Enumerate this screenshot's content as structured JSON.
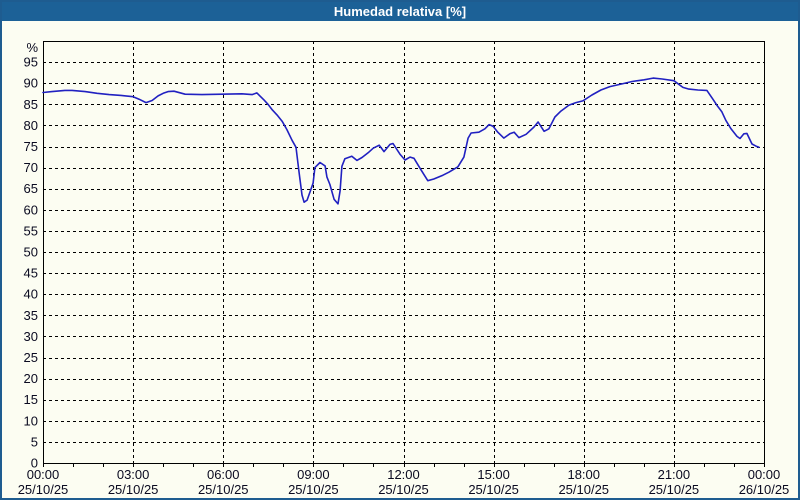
{
  "window": {
    "title": "Humedad relativa [%]"
  },
  "colors": {
    "titlebar_bg": "#1c6197",
    "titlebar_text": "#ffffff",
    "window_bg": "#fcfdf2",
    "window_border": "#1e5c90",
    "plot_border": "#000000",
    "grid": "#000000",
    "label_text": "#0a0a20",
    "line": "#2121c1"
  },
  "chart_data": {
    "type": "line",
    "title": "Humedad relativa [%]",
    "ylabel": "%",
    "xlabel": "",
    "ylim": [
      0,
      100
    ],
    "yticks": [
      0,
      5,
      10,
      15,
      20,
      25,
      30,
      35,
      40,
      45,
      50,
      55,
      60,
      65,
      70,
      75,
      80,
      85,
      90,
      95
    ],
    "x_hours_range": [
      0,
      24
    ],
    "x_minor_step_hours": 1,
    "x_major_step_hours": 3,
    "grid": "dashed",
    "legend": "none",
    "x_major_ticks": [
      {
        "time": "00:00",
        "date": "25/10/25"
      },
      {
        "time": "03:00",
        "date": "25/10/25"
      },
      {
        "time": "06:00",
        "date": "25/10/25"
      },
      {
        "time": "09:00",
        "date": "25/10/25"
      },
      {
        "time": "12:00",
        "date": "25/10/25"
      },
      {
        "time": "15:00",
        "date": "25/10/25"
      },
      {
        "time": "18:00",
        "date": "25/10/25"
      },
      {
        "time": "21:00",
        "date": "25/10/25"
      },
      {
        "time": "00:00",
        "date": "26/10/25"
      }
    ],
    "series": [
      {
        "name": "Humedad relativa",
        "color": "#2121c1",
        "points": [
          [
            0,
            87.8
          ],
          [
            0.3,
            88
          ],
          [
            0.73,
            88.3
          ],
          [
            0.97,
            88.3
          ],
          [
            1.4,
            88
          ],
          [
            1.8,
            87.6
          ],
          [
            2.2,
            87.3
          ],
          [
            2.6,
            87.1
          ],
          [
            3,
            86.8
          ],
          [
            3.2,
            86.2
          ],
          [
            3.43,
            85.4
          ],
          [
            3.63,
            85.9
          ],
          [
            3.83,
            87
          ],
          [
            4,
            87.6
          ],
          [
            4.16,
            88
          ],
          [
            4.36,
            88.1
          ],
          [
            4.73,
            87.4
          ],
          [
            5.29,
            87.3
          ],
          [
            5.96,
            87.4
          ],
          [
            6.62,
            87.5
          ],
          [
            6.96,
            87.3
          ],
          [
            7.12,
            87.7
          ],
          [
            7.22,
            87
          ],
          [
            7.36,
            86
          ],
          [
            7.49,
            85
          ],
          [
            7.62,
            83.8
          ],
          [
            7.79,
            82.5
          ],
          [
            7.96,
            81
          ],
          [
            8.12,
            79
          ],
          [
            8.29,
            76.5
          ],
          [
            8.42,
            74.8
          ],
          [
            8.52,
            69
          ],
          [
            8.62,
            63.5
          ],
          [
            8.69,
            61.8
          ],
          [
            8.79,
            62.3
          ],
          [
            8.99,
            66.3
          ],
          [
            9.05,
            70
          ],
          [
            9.22,
            71.2
          ],
          [
            9.39,
            70.4
          ],
          [
            9.45,
            67.8
          ],
          [
            9.55,
            66
          ],
          [
            9.69,
            62.5
          ],
          [
            9.82,
            61.4
          ],
          [
            9.89,
            64.5
          ],
          [
            9.95,
            70.3
          ],
          [
            10.05,
            72.1
          ],
          [
            10.28,
            72.7
          ],
          [
            10.45,
            71.7
          ],
          [
            10.62,
            72.4
          ],
          [
            10.82,
            73.5
          ],
          [
            10.99,
            74.6
          ],
          [
            11.19,
            75.3
          ],
          [
            11.35,
            73.8
          ],
          [
            11.55,
            75.5
          ],
          [
            11.65,
            75.7
          ],
          [
            11.88,
            73.2
          ],
          [
            12.05,
            71.8
          ],
          [
            12.22,
            72.5
          ],
          [
            12.35,
            72.2
          ],
          [
            12.58,
            69.5
          ],
          [
            12.81,
            66.9
          ],
          [
            13.01,
            67.3
          ],
          [
            13.31,
            68.2
          ],
          [
            13.51,
            68.9
          ],
          [
            13.81,
            70.2
          ],
          [
            14.01,
            72.5
          ],
          [
            14.15,
            77
          ],
          [
            14.25,
            78.2
          ],
          [
            14.51,
            78.4
          ],
          [
            14.71,
            79.2
          ],
          [
            14.85,
            80.2
          ],
          [
            14.98,
            79.8
          ],
          [
            15.14,
            78.4
          ],
          [
            15.34,
            77
          ],
          [
            15.54,
            78
          ],
          [
            15.68,
            78.4
          ],
          [
            15.84,
            77.1
          ],
          [
            16.08,
            77.9
          ],
          [
            16.34,
            79.6
          ],
          [
            16.48,
            80.8
          ],
          [
            16.68,
            78.6
          ],
          [
            16.84,
            79.2
          ],
          [
            17.04,
            82
          ],
          [
            17.24,
            83.4
          ],
          [
            17.51,
            84.8
          ],
          [
            17.74,
            85.4
          ],
          [
            17.97,
            85.8
          ],
          [
            18.27,
            87.2
          ],
          [
            18.57,
            88.4
          ],
          [
            18.87,
            89.2
          ],
          [
            19.31,
            89.9
          ],
          [
            19.61,
            90.4
          ],
          [
            20.01,
            90.8
          ],
          [
            20.31,
            91.2
          ],
          [
            20.61,
            91
          ],
          [
            21,
            90.6
          ],
          [
            21.3,
            89
          ],
          [
            21.5,
            88.6
          ],
          [
            21.8,
            88.4
          ],
          [
            22.1,
            88.3
          ],
          [
            22.3,
            86.2
          ],
          [
            22.43,
            84.8
          ],
          [
            22.6,
            83.2
          ],
          [
            22.73,
            81.2
          ],
          [
            22.9,
            79.2
          ],
          [
            23.1,
            77.4
          ],
          [
            23.2,
            76.9
          ],
          [
            23.33,
            78
          ],
          [
            23.43,
            78.1
          ],
          [
            23.6,
            75.6
          ],
          [
            23.73,
            75.1
          ],
          [
            23.83,
            74.8
          ]
        ]
      }
    ]
  }
}
